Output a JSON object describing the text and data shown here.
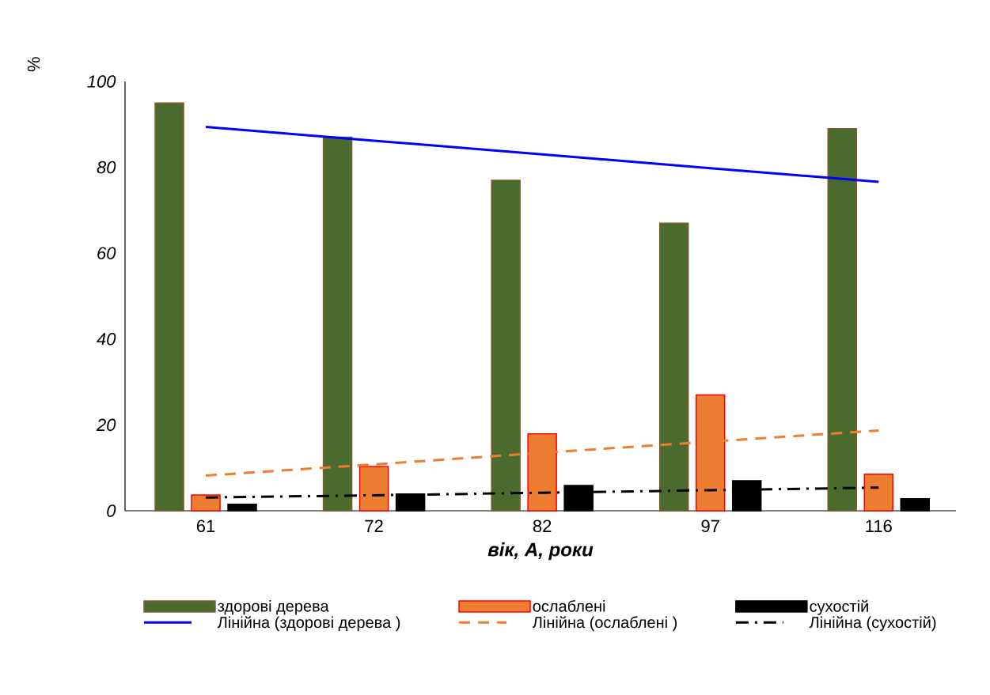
{
  "chart_data": {
    "type": "bar",
    "xlabel": "вік, А, роки",
    "ylabel": "%",
    "categories": [
      "61",
      "72",
      "82",
      "97",
      "116"
    ],
    "ylim": [
      0,
      100
    ],
    "yticks": [
      0,
      20,
      40,
      60,
      80,
      100
    ],
    "legend": "bottom",
    "marker": "none",
    "series": [
      {
        "name": "здорові дерева",
        "color": "#4a6b2e",
        "values": [
          95,
          87,
          77,
          67,
          89
        ]
      },
      {
        "name": "ослаблені",
        "color": "#ed7d31",
        "values": [
          3.7,
          10.3,
          17.9,
          27,
          8.5
        ]
      },
      {
        "name": "сухостій",
        "color": "#000000",
        "values": [
          1.5,
          3.9,
          5.9,
          7.0,
          2.8
        ]
      },
      {
        "name": "Лінійна (здорові дерева )",
        "type": "line",
        "line_style": "solid",
        "color": "#0000ff",
        "values": [
          89.4,
          86.2,
          83,
          79.8,
          76.6
        ]
      },
      {
        "name": "Лінійна (ослаблені )",
        "type": "line",
        "line_style": "dashed",
        "color": "#ed7d31",
        "values": [
          8.2,
          10.8,
          13.5,
          16.1,
          18.7
        ]
      },
      {
        "name": "Лінійна (сухостій)",
        "type": "line",
        "line_style": "dashdotted",
        "color": "#000000",
        "values": [
          3.1,
          3.6,
          4.2,
          4.8,
          5.4
        ]
      }
    ]
  }
}
